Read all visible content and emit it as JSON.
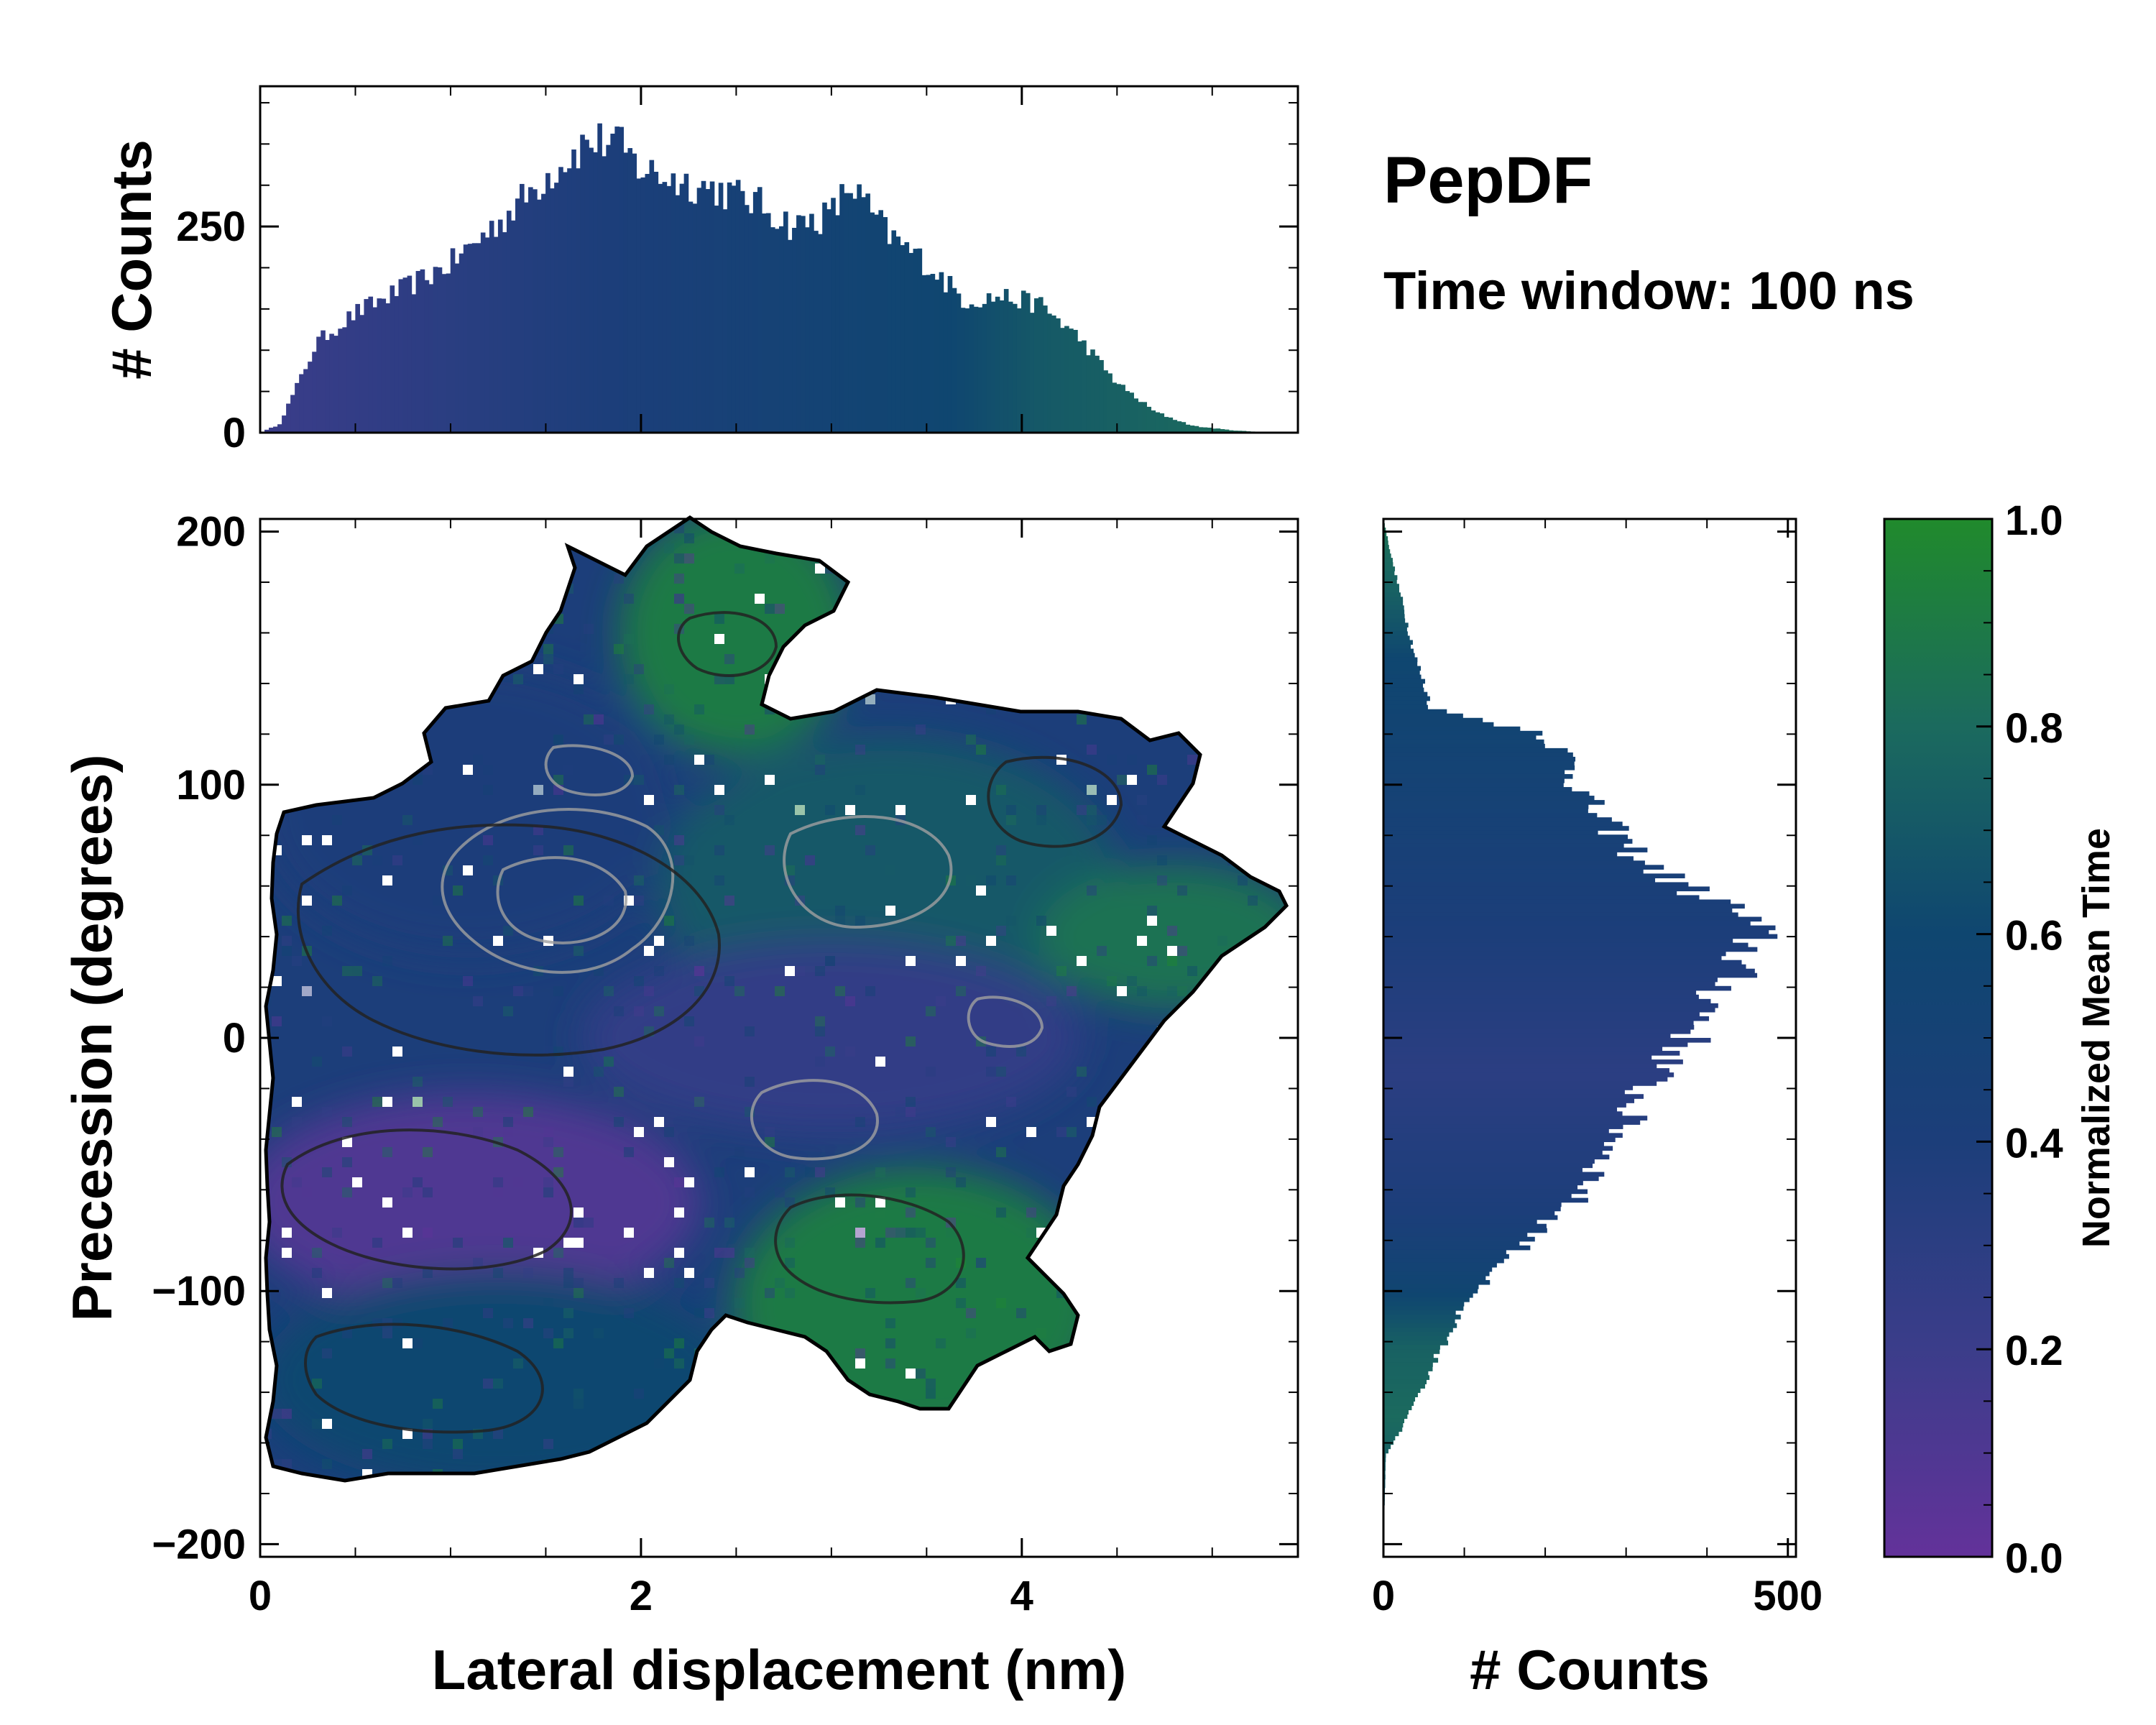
{
  "chart_data": {
    "type": "heatmap",
    "title": "PepDF",
    "subtitle": "Time window: 100 ns",
    "main": {
      "xlabel": "Lateral displacement (nm)",
      "ylabel": "Precession (degrees)",
      "xlim": [
        0,
        5.45
      ],
      "ylim": [
        -205,
        205
      ],
      "xticks": [
        0,
        2,
        4
      ],
      "yticks": [
        -200,
        -100,
        0,
        100,
        200
      ],
      "xtick_labels": [
        "0",
        "2",
        "4"
      ],
      "ytick_labels": [
        "−200",
        "−100",
        "0",
        "100",
        "200"
      ],
      "color_regions": [
        {
          "name": "upper-left blue",
          "x_range": [
            0.1,
            2.1
          ],
          "y_range": [
            40,
            140
          ],
          "value": 0.4
        },
        {
          "name": "top green",
          "x_range": [
            2.0,
            3.0
          ],
          "y_range": [
            120,
            200
          ],
          "value": 0.9
        },
        {
          "name": "center-right teal",
          "x_range": [
            2.2,
            4.4
          ],
          "y_range": [
            10,
            110
          ],
          "value": 0.7
        },
        {
          "name": "far-right green",
          "x_range": [
            4.2,
            5.4
          ],
          "y_range": [
            20,
            60
          ],
          "value": 0.85
        },
        {
          "name": "center purple",
          "x_range": [
            1.8,
            4.2
          ],
          "y_range": [
            -30,
            30
          ],
          "value": 0.25
        },
        {
          "name": "lower-left purple",
          "x_range": [
            0.0,
            2.2
          ],
          "y_range": [
            -100,
            -30
          ],
          "value": 0.1
        },
        {
          "name": "bottom-left teal",
          "x_range": [
            0.1,
            2.4
          ],
          "y_range": [
            -170,
            -100
          ],
          "value": 0.6
        },
        {
          "name": "bottom-right green",
          "x_range": [
            2.6,
            4.3
          ],
          "y_range": [
            -150,
            -60
          ],
          "value": 0.9
        }
      ]
    },
    "top_histogram": {
      "ylabel": "# Counts",
      "ylim": [
        0,
        420
      ],
      "yticks": [
        0,
        250
      ],
      "ytick_labels": [
        "0",
        "250"
      ],
      "x_knots": [
        0.0,
        0.1,
        0.3,
        0.5,
        0.8,
        1.0,
        1.3,
        1.5,
        1.7,
        1.85,
        2.0,
        2.2,
        2.4,
        2.6,
        2.8,
        3.0,
        3.1,
        3.3,
        3.5,
        3.7,
        3.9,
        4.1,
        4.3,
        4.5,
        4.7,
        4.9,
        5.1,
        5.3,
        5.45
      ],
      "count_knots": [
        0,
        10,
        110,
        145,
        180,
        205,
        265,
        310,
        350,
        355,
        320,
        305,
        295,
        280,
        250,
        265,
        300,
        240,
        205,
        160,
        165,
        155,
        115,
        60,
        25,
        8,
        3,
        0,
        0
      ],
      "color_knots": [
        0.2,
        0.25,
        0.3,
        0.35,
        0.4,
        0.45,
        0.5,
        0.55,
        0.6,
        0.7,
        0.75,
        0.8,
        0.85
      ]
    },
    "right_histogram": {
      "xlabel": "# Counts",
      "xlim": [
        0,
        510
      ],
      "xticks": [
        0,
        500
      ],
      "xtick_labels": [
        "0",
        "500"
      ],
      "y_knots": [
        -205,
        -165,
        -150,
        -130,
        -110,
        -100,
        -80,
        -60,
        -40,
        -20,
        0,
        10,
        30,
        40,
        50,
        60,
        70,
        80,
        90,
        100,
        110,
        120,
        130,
        150,
        170,
        190,
        205
      ],
      "count_knots": [
        0,
        3,
        30,
        60,
        90,
        110,
        180,
        250,
        290,
        320,
        380,
        400,
        440,
        460,
        440,
        370,
        320,
        290,
        260,
        240,
        230,
        200,
        60,
        40,
        25,
        10,
        0
      ],
      "color_knots": [
        0.6,
        0.7,
        0.8,
        0.75,
        0.55,
        0.4,
        0.35,
        0.3,
        0.35,
        0.4,
        0.45,
        0.5,
        0.55,
        0.6,
        0.75,
        0.85
      ]
    },
    "colorbar": {
      "label": "Normalized Mean Time",
      "range": [
        0.0,
        1.0
      ],
      "ticks": [
        0.0,
        0.2,
        0.4,
        0.6,
        0.8,
        1.0
      ],
      "tick_labels": [
        "0.0",
        "0.2",
        "0.4",
        "0.6",
        "0.8",
        "1.0"
      ],
      "colors": [
        "#63329a",
        "#3b3d8a",
        "#1c3e7a",
        "#0f4670",
        "#1b6a5e",
        "#208a2c"
      ]
    }
  }
}
